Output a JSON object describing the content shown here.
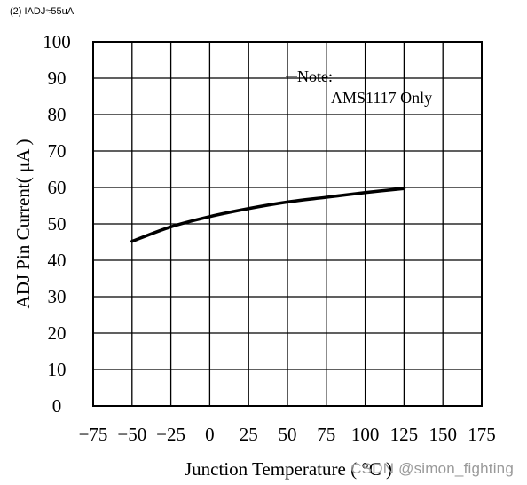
{
  "caption": "(2) IADJ≈55uA",
  "watermark": "CSDN @simon_fighting",
  "chart_data": {
    "type": "line",
    "title": "",
    "xlabel": "Junction Temperature ( °C )",
    "ylabel": "ADJ Pin Current( μA )",
    "xlim": [
      -75,
      175
    ],
    "ylim": [
      0,
      100
    ],
    "x_ticks": [
      -75,
      -50,
      -25,
      0,
      25,
      50,
      75,
      100,
      125,
      150,
      175
    ],
    "y_ticks": [
      0,
      10,
      20,
      30,
      40,
      50,
      60,
      70,
      80,
      90,
      100
    ],
    "grid": true,
    "line_color": "#000000",
    "note_lines": [
      "Note:",
      "AMS1117 Only"
    ],
    "series": [
      {
        "x": [
          -50,
          -25,
          0,
          25,
          50,
          75,
          100,
          125
        ],
        "values": [
          45.2,
          49.2,
          52.0,
          54.2,
          56.0,
          57.3,
          58.6,
          59.7
        ]
      }
    ]
  }
}
